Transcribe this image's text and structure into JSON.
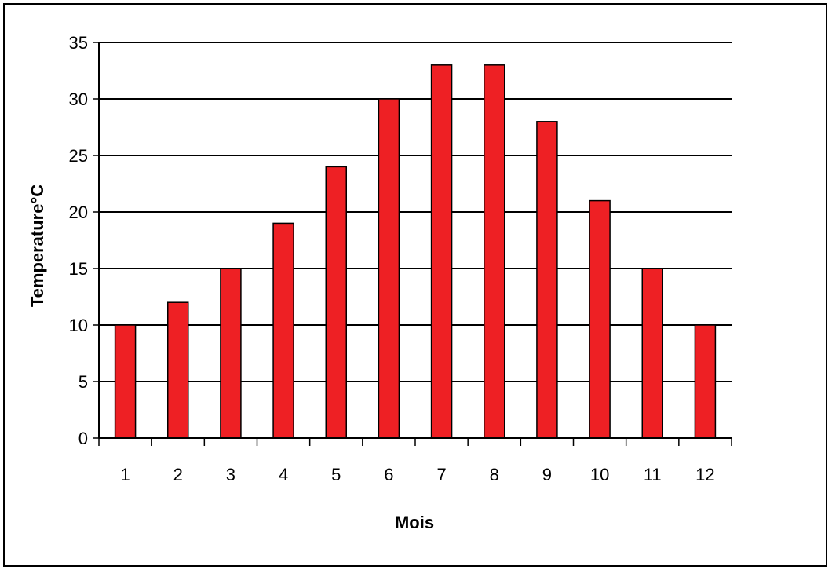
{
  "chart_data": {
    "type": "bar",
    "title": "",
    "xlabel": "Mois",
    "ylabel": "Temperature°C",
    "categories": [
      "1",
      "2",
      "3",
      "4",
      "5",
      "6",
      "7",
      "8",
      "9",
      "10",
      "11",
      "12"
    ],
    "values": [
      10,
      12,
      15,
      19,
      24,
      30,
      33,
      33,
      28,
      21,
      15,
      10
    ],
    "ylim": [
      0,
      35
    ],
    "yticks": [
      "0",
      "5",
      "10",
      "15",
      "20",
      "25",
      "30",
      "35"
    ],
    "grid": true,
    "legend": false,
    "colors": {
      "bar": "#ee2024",
      "bar_outline": "#000000",
      "grid": "#000000"
    }
  }
}
